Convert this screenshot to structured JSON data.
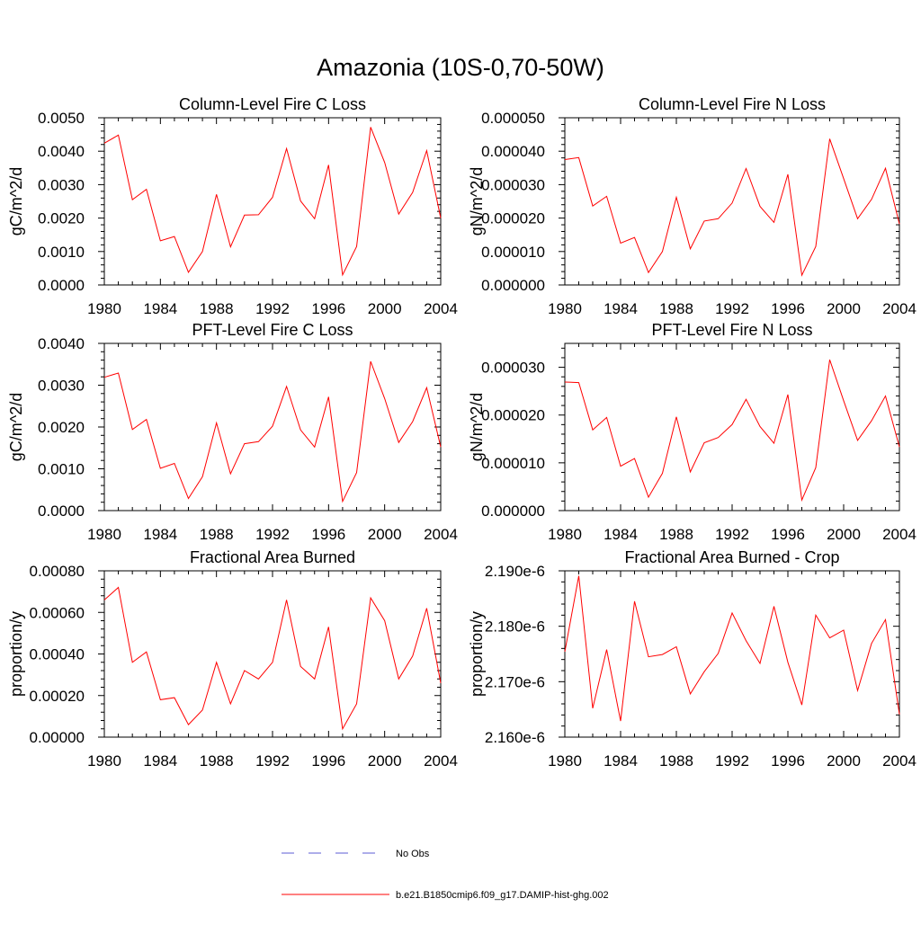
{
  "figure_title": "Amazonia (10S-0,70-50W)",
  "legend": {
    "entries": [
      {
        "label": "No Obs",
        "style": "dashed",
        "color": "#5b5bd6"
      },
      {
        "label": "b.e21.B1850cmip6.f09_g17.DAMIP-hist-ghg.002",
        "style": "solid",
        "color": "#ff0000"
      }
    ]
  },
  "chart_data": [
    {
      "type": "line",
      "title": "Column-Level Fire C Loss",
      "ylabel": "gC/m^2/d",
      "xlim": [
        1980,
        2004
      ],
      "ylim": [
        0,
        0.005
      ],
      "xticks": [
        "1980",
        "1984",
        "1988",
        "1992",
        "1996",
        "2000",
        "2004"
      ],
      "yticks": [
        "0.0000",
        "0.0010",
        "0.0020",
        "0.0030",
        "0.0040",
        "0.0050"
      ],
      "x": [
        1980,
        1981,
        1982,
        1983,
        1984,
        1985,
        1986,
        1987,
        1988,
        1989,
        1990,
        1991,
        1992,
        1993,
        1994,
        1995,
        1996,
        1997,
        1998,
        1999,
        2000,
        2001,
        2002,
        2003,
        2004
      ],
      "series": [
        {
          "color": "#ff0000",
          "values": [
            0.00424,
            0.00448,
            0.00255,
            0.00286,
            0.00132,
            0.00145,
            0.00038,
            0.001,
            0.00271,
            0.00114,
            0.00209,
            0.0021,
            0.00262,
            0.00408,
            0.00251,
            0.00198,
            0.00359,
            0.0003,
            0.00115,
            0.00472,
            0.00366,
            0.00212,
            0.00277,
            0.00402,
            0.002
          ]
        }
      ]
    },
    {
      "type": "line",
      "title": "Column-Level Fire N Loss",
      "ylabel": "gN/m^2/d",
      "xlim": [
        1980,
        2004
      ],
      "ylim": [
        0,
        5e-05
      ],
      "xticks": [
        "1980",
        "1984",
        "1988",
        "1992",
        "1996",
        "2000",
        "2004"
      ],
      "yticks": [
        "0.000000",
        "0.000010",
        "0.000020",
        "0.000030",
        "0.000040",
        "0.000050"
      ],
      "x": [
        1980,
        1981,
        1982,
        1983,
        1984,
        1985,
        1986,
        1987,
        1988,
        1989,
        1990,
        1991,
        1992,
        1993,
        1994,
        1995,
        1996,
        1997,
        1998,
        1999,
        2000,
        2001,
        2002,
        2003,
        2004
      ],
      "series": [
        {
          "color": "#ff0000",
          "values": [
            3.75e-05,
            3.81e-05,
            2.36e-05,
            2.65e-05,
            1.25e-05,
            1.42e-05,
            3.7e-06,
            1e-05,
            2.62e-05,
            1.08e-05,
            1.91e-05,
            1.98e-05,
            2.45e-05,
            3.48e-05,
            2.35e-05,
            1.87e-05,
            3.31e-05,
            2.9e-06,
            1.15e-05,
            4.37e-05,
            3.18e-05,
            1.98e-05,
            2.56e-05,
            3.49e-05,
            1.82e-05
          ]
        }
      ]
    },
    {
      "type": "line",
      "title": "PFT-Level Fire C Loss",
      "ylabel": "gC/m^2/d",
      "xlim": [
        1980,
        2004
      ],
      "ylim": [
        0,
        0.004
      ],
      "xticks": [
        "1980",
        "1984",
        "1988",
        "1992",
        "1996",
        "2000",
        "2004"
      ],
      "yticks": [
        "0.0000",
        "0.0010",
        "0.0020",
        "0.0030",
        "0.0040"
      ],
      "x": [
        1980,
        1981,
        1982,
        1983,
        1984,
        1985,
        1986,
        1987,
        1988,
        1989,
        1990,
        1991,
        1992,
        1993,
        1994,
        1995,
        1996,
        1997,
        1998,
        1999,
        2000,
        2001,
        2002,
        2003,
        2004
      ],
      "series": [
        {
          "color": "#ff0000",
          "values": [
            0.00319,
            0.00329,
            0.00194,
            0.00218,
            0.00101,
            0.00113,
            0.00029,
            0.00081,
            0.0021,
            0.00088,
            0.0016,
            0.00165,
            0.00202,
            0.00297,
            0.00193,
            0.00152,
            0.00272,
            0.00022,
            0.00091,
            0.00357,
            0.00268,
            0.00163,
            0.00213,
            0.00294,
            0.00152
          ]
        }
      ]
    },
    {
      "type": "line",
      "title": "PFT-Level Fire N Loss",
      "ylabel": "gN/m^2/d",
      "xlim": [
        1980,
        2004
      ],
      "ylim": [
        0,
        3.5e-05
      ],
      "xticks": [
        "1980",
        "1984",
        "1988",
        "1992",
        "1996",
        "2000",
        "2004"
      ],
      "yticks": [
        "0.000000",
        "0.000010",
        "0.000020",
        "0.000030"
      ],
      "x": [
        1980,
        1981,
        1982,
        1983,
        1984,
        1985,
        1986,
        1987,
        1988,
        1989,
        1990,
        1991,
        1992,
        1993,
        1994,
        1995,
        1996,
        1997,
        1998,
        1999,
        2000,
        2001,
        2002,
        2003,
        2004
      ],
      "series": [
        {
          "color": "#ff0000",
          "values": [
            2.69e-05,
            2.68e-05,
            1.69e-05,
            1.95e-05,
            9.3e-06,
            1.09e-05,
            2.8e-06,
            7.8e-06,
            1.96e-05,
            8.1e-06,
            1.42e-05,
            1.53e-05,
            1.8e-05,
            2.33e-05,
            1.76e-05,
            1.41e-05,
            2.43e-05,
            2.2e-06,
            9e-06,
            3.16e-05,
            2.3e-05,
            1.47e-05,
            1.88e-05,
            2.4e-05,
            1.33e-05
          ]
        }
      ]
    },
    {
      "type": "line",
      "title": "Fractional Area Burned",
      "ylabel": "proportion/y",
      "xlim": [
        1980,
        2004
      ],
      "ylim": [
        0,
        0.0008
      ],
      "xticks": [
        "1980",
        "1984",
        "1988",
        "1992",
        "1996",
        "2000",
        "2004"
      ],
      "yticks": [
        "0.00000",
        "0.00020",
        "0.00040",
        "0.00060",
        "0.00080"
      ],
      "x": [
        1980,
        1981,
        1982,
        1983,
        1984,
        1985,
        1986,
        1987,
        1988,
        1989,
        1990,
        1991,
        1992,
        1993,
        1994,
        1995,
        1996,
        1997,
        1998,
        1999,
        2000,
        2001,
        2002,
        2003,
        2004
      ],
      "series": [
        {
          "color": "#ff0000",
          "values": [
            0.00066,
            0.00072,
            0.00036,
            0.00041,
            0.00018,
            0.00019,
            6e-05,
            0.00013,
            0.00036,
            0.00016,
            0.00032,
            0.00028,
            0.00036,
            0.00066,
            0.00034,
            0.00028,
            0.00053,
            4e-05,
            0.00016,
            0.00067,
            0.00056,
            0.00028,
            0.00039,
            0.00062,
            0.00026
          ]
        }
      ]
    },
    {
      "type": "line",
      "title": "Fractional Area Burned - Crop",
      "ylabel": "proportion/y",
      "xlim": [
        1980,
        2004
      ],
      "ylim": [
        2.16e-06,
        2.19e-06
      ],
      "xticks": [
        "1980",
        "1984",
        "1988",
        "1992",
        "1996",
        "2000",
        "2004"
      ],
      "yticks": [
        "2.160e-6",
        "2.170e-6",
        "2.180e-6",
        "2.190e-6"
      ],
      "x": [
        1980,
        1981,
        1982,
        1983,
        1984,
        1985,
        1986,
        1987,
        1988,
        1989,
        1990,
        1991,
        1992,
        1993,
        1994,
        1995,
        1996,
        1997,
        1998,
        1999,
        2000,
        2001,
        2002,
        2003,
        2004
      ],
      "series": [
        {
          "color": "#ff0000",
          "values": [
            2.1754e-06,
            2.1891e-06,
            2.1652e-06,
            2.1758e-06,
            2.1629e-06,
            2.1845e-06,
            2.1745e-06,
            2.1749e-06,
            2.1763e-06,
            2.1678e-06,
            2.1718e-06,
            2.1751e-06,
            2.1824e-06,
            2.1774e-06,
            2.1733e-06,
            2.1836e-06,
            2.1735e-06,
            2.1658e-06,
            2.182e-06,
            2.1779e-06,
            2.1793e-06,
            2.1684e-06,
            2.1769e-06,
            2.1812e-06,
            2.1641e-06
          ]
        }
      ]
    }
  ]
}
